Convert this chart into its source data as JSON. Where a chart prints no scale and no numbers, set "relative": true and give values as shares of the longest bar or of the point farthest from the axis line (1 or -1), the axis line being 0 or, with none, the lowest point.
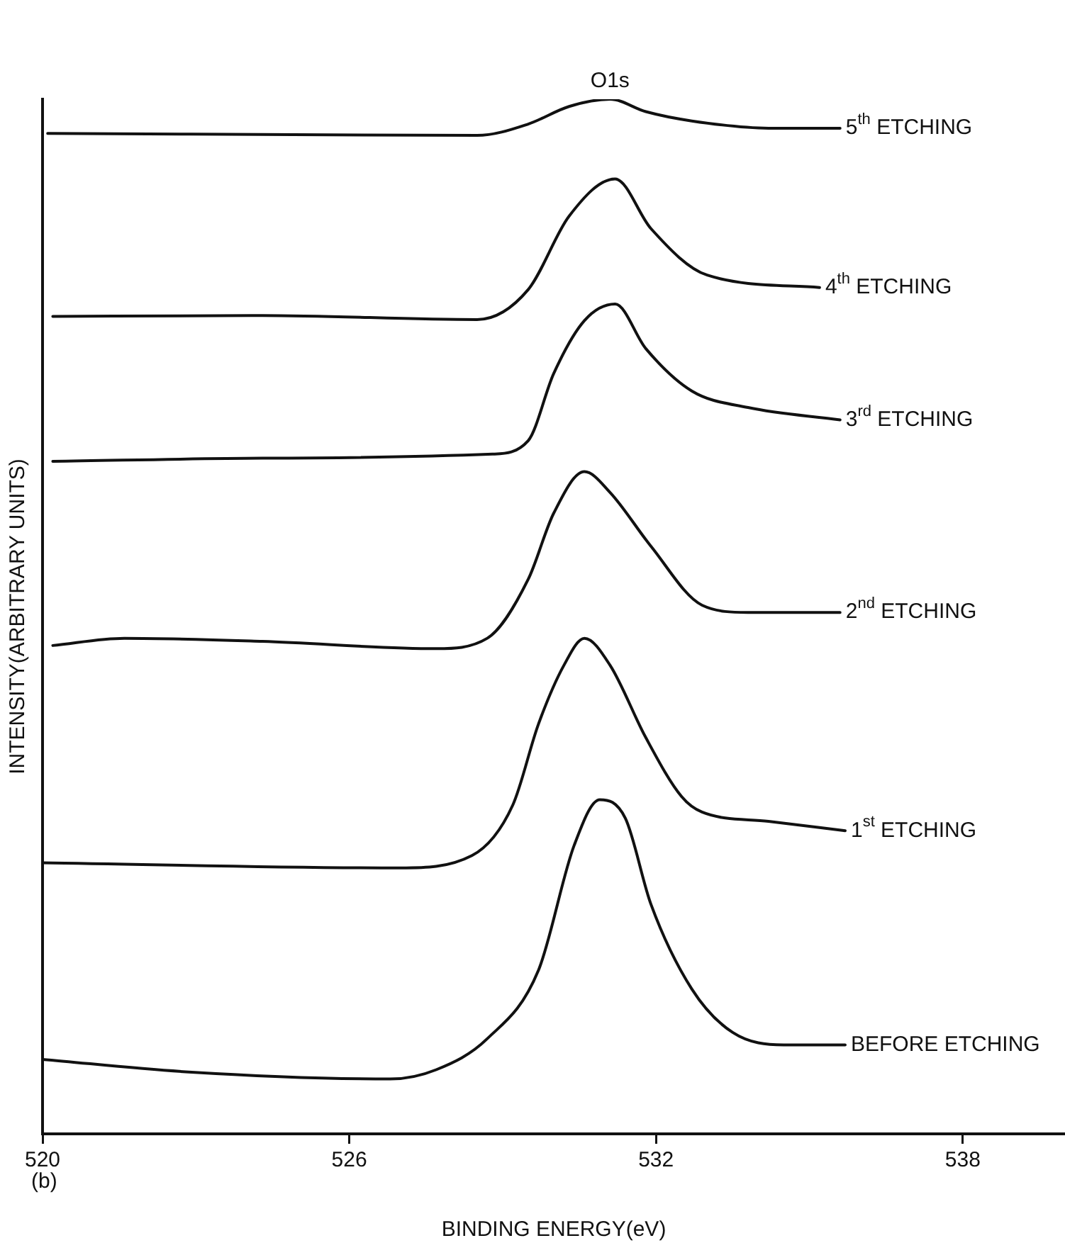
{
  "chart_data": {
    "type": "line",
    "relative": true,
    "xlabel": "BINDING ENERGY(eV)",
    "ylabel": "INTENSITY(ARBITRARY UNITS)",
    "xlim": [
      520,
      540
    ],
    "xticks": [
      520,
      526,
      532,
      538
    ],
    "grid": false,
    "legend": false,
    "marker": "none",
    "line_style": "solid",
    "annotations": [
      {
        "text": "O1s",
        "x": 531.1,
        "y": 1
      },
      "(b)"
    ],
    "series": [
      {
        "name": "5$^{th}$ ETCHING",
        "color": "#111111",
        "x": [
          520.1,
          528.5,
          529.5,
          530.3,
          531.1,
          531.8,
          532.7,
          534.2,
          535.6
        ],
        "values": [
          0.967,
          0.965,
          0.976,
          0.993,
          1,
          0.988,
          0.979,
          0.972,
          0.972
        ]
      },
      {
        "name": "4$^{th}$ ETCHING",
        "color": "#111111",
        "x": [
          520.2,
          524.3,
          528.5,
          529.5,
          530.3,
          531.2,
          531.9,
          533.0,
          535.2
        ],
        "values": [
          0.79,
          0.791,
          0.787,
          0.816,
          0.887,
          0.923,
          0.875,
          0.83,
          0.818
        ]
      },
      {
        "name": "3$^{rd}$ ETCHING",
        "color": "#111111",
        "x": [
          520.2,
          524.3,
          528.8,
          529.5,
          530.0,
          530.6,
          531.2,
          531.8,
          532.7,
          533.8,
          535.6
        ],
        "values": [
          0.65,
          0.653,
          0.657,
          0.67,
          0.735,
          0.786,
          0.802,
          0.759,
          0.718,
          0.702,
          0.69
        ]
      },
      {
        "name": "2$^{nd}$ ETCHING",
        "color": "#111111",
        "x": [
          520.2,
          521.6,
          524.3,
          527.7,
          528.7,
          529.5,
          530.0,
          530.6,
          531.1,
          531.9,
          532.9,
          533.8,
          535.6
        ],
        "values": [
          0.472,
          0.479,
          0.476,
          0.469,
          0.479,
          0.536,
          0.6,
          0.64,
          0.62,
          0.568,
          0.511,
          0.504,
          0.504
        ]
      },
      {
        "name": "1$^{st}$ ETCHING",
        "color": "#111111",
        "x": [
          520,
          527.0,
          528.4,
          529.2,
          529.7,
          530.2,
          530.6,
          531.1,
          531.8,
          532.5,
          532.9,
          534.2,
          535.7
        ],
        "values": [
          0.262,
          0.257,
          0.269,
          0.318,
          0.396,
          0.453,
          0.479,
          0.453,
          0.383,
          0.326,
          0.311,
          0.302,
          0.293
        ]
      },
      {
        "name": "BEFORE ETCHING",
        "color": "#111111",
        "x": [
          520,
          522.8,
          526.8,
          527.7,
          528.7,
          529.7,
          530.4,
          530.9,
          531.4,
          531.9,
          532.7,
          533.5,
          534.5,
          535.7
        ],
        "values": [
          0.072,
          0.06,
          0.053,
          0.062,
          0.092,
          0.158,
          0.279,
          0.323,
          0.305,
          0.222,
          0.14,
          0.098,
          0.086,
          0.086
        ]
      }
    ]
  }
}
